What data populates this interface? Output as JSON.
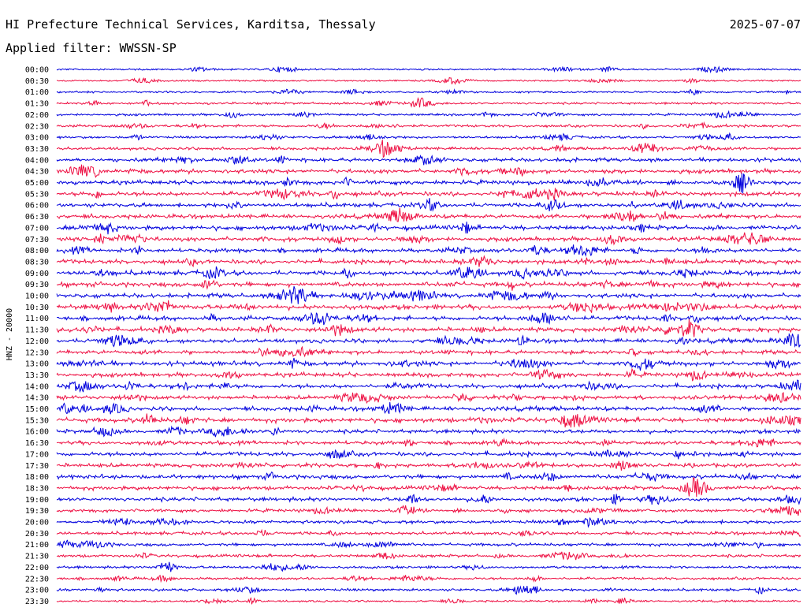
{
  "header": {
    "title": "HI Prefecture Technical Services, Karditsa, Thessaly",
    "date": "2025-07-07",
    "filter": "Applied filter: WWSSN-SP"
  },
  "chart_data": {
    "type": "line",
    "ylabel": "HNZ - 20000",
    "row_labels": [
      "00:00",
      "00:30",
      "01:00",
      "01:30",
      "02:00",
      "02:30",
      "03:00",
      "03:30",
      "04:00",
      "04:30",
      "05:00",
      "05:30",
      "06:00",
      "06:30",
      "07:00",
      "07:30",
      "08:00",
      "08:30",
      "09:00",
      "09:30",
      "10:00",
      "10:30",
      "11:00",
      "11:30",
      "12:00",
      "12:30",
      "13:00",
      "13:30",
      "14:00",
      "14:30",
      "15:00",
      "15:30",
      "16:00",
      "16:30",
      "17:00",
      "17:30",
      "18:00",
      "18:30",
      "19:00",
      "19:30",
      "20:00",
      "20:30",
      "21:00",
      "21:30",
      "22:00",
      "22:30",
      "23:00",
      "23:30"
    ],
    "colors": [
      "#0000dd",
      "#ee1144"
    ],
    "relative_noise_level": [
      0.12,
      0.08,
      0.15,
      0.18,
      0.2,
      0.25,
      0.22,
      0.3,
      0.45,
      0.5,
      0.5,
      0.55,
      0.5,
      0.5,
      0.55,
      0.5,
      0.5,
      0.55,
      0.55,
      0.55,
      0.55,
      0.6,
      0.55,
      0.55,
      0.5,
      0.5,
      0.55,
      0.5,
      0.5,
      0.45,
      0.5,
      0.55,
      0.45,
      0.45,
      0.5,
      0.45,
      0.5,
      0.45,
      0.45,
      0.35,
      0.35,
      0.35,
      0.3,
      0.3,
      0.25,
      0.25,
      0.25,
      0.15
    ]
  }
}
